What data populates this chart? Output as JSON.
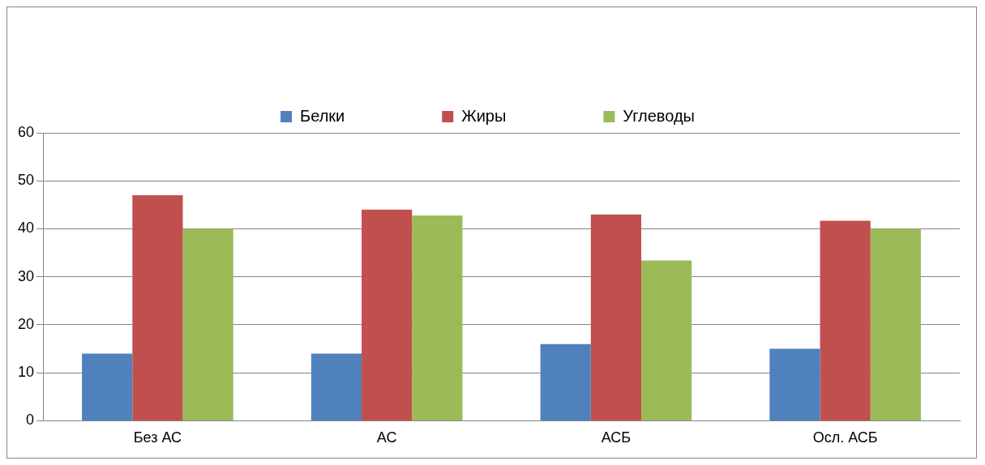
{
  "chart_data": {
    "type": "bar",
    "categories": [
      "Без АС",
      "АС",
      "АСБ",
      "Осл. АСБ"
    ],
    "series": [
      {
        "name": "Белки",
        "color": "#4f81bd",
        "values": [
          14,
          14,
          16,
          15
        ]
      },
      {
        "name": "Жиры",
        "color": "#c0504d",
        "values": [
          47,
          44,
          43,
          41.7
        ]
      },
      {
        "name": "Углеводы",
        "color": "#9bbb59",
        "values": [
          40,
          42.8,
          33.4,
          40
        ]
      }
    ],
    "ylim": [
      0,
      60
    ],
    "yticks": [
      0,
      10,
      20,
      30,
      40,
      50,
      60
    ],
    "grid": "y",
    "legend": "top"
  }
}
